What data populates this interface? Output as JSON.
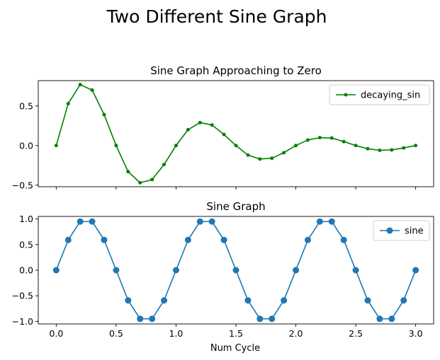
{
  "figure": {
    "suptitle": "Two Different Sine Graph",
    "xlabel": "Num Cycle"
  },
  "chart_data": [
    {
      "type": "line",
      "title": "Sine Graph Approaching to Zero",
      "xlabel": "",
      "ylabel": "",
      "xlim": [
        -0.15,
        3.15
      ],
      "ylim": [
        -0.52,
        0.82
      ],
      "xticks": [
        0.0,
        0.5,
        1.0,
        1.5,
        2.0,
        2.5,
        3.0
      ],
      "xtick_labels_visible": false,
      "yticks": [
        -0.5,
        0.0,
        0.5
      ],
      "ytick_labels": [
        "−0.5",
        "0.0",
        "0.5"
      ],
      "legend": "upper right",
      "grid": false,
      "series": [
        {
          "name": "decaying_sin",
          "color": "#008000",
          "marker": "small-dot",
          "x": [
            0.0,
            0.1,
            0.2,
            0.3,
            0.4,
            0.5,
            0.6,
            0.7,
            0.8,
            0.9,
            1.0,
            1.1,
            1.2,
            1.3,
            1.4,
            1.5,
            1.6,
            1.7,
            1.8,
            1.9,
            2.0,
            2.1,
            2.2,
            2.3,
            2.4,
            2.5,
            2.6,
            2.7,
            2.8,
            2.9,
            3.0
          ],
          "y": [
            0.0,
            0.53,
            0.77,
            0.7,
            0.39,
            0.0,
            -0.33,
            -0.47,
            -0.43,
            -0.24,
            0.0,
            0.2,
            0.29,
            0.26,
            0.14,
            0.0,
            -0.12,
            -0.17,
            -0.16,
            -0.09,
            0.0,
            0.07,
            0.1,
            0.095,
            0.05,
            0.0,
            -0.04,
            -0.06,
            -0.055,
            -0.03,
            0.0
          ]
        }
      ]
    },
    {
      "type": "line",
      "title": "Sine Graph",
      "xlabel": "Num Cycle",
      "ylabel": "",
      "xlim": [
        -0.15,
        3.15
      ],
      "ylim": [
        -1.05,
        1.05
      ],
      "xticks": [
        0.0,
        0.5,
        1.0,
        1.5,
        2.0,
        2.5,
        3.0
      ],
      "xtick_labels": [
        "0.0",
        "0.5",
        "1.0",
        "1.5",
        "2.0",
        "2.5",
        "3.0"
      ],
      "yticks": [
        -1.0,
        -0.5,
        0.0,
        0.5,
        1.0
      ],
      "ytick_labels": [
        "−1.0",
        "−0.5",
        "0.0",
        "0.5",
        "1.0"
      ],
      "legend": "upper right",
      "grid": false,
      "series": [
        {
          "name": "sine",
          "color": "#1f77b4",
          "marker": "large-dot",
          "x": [
            0.0,
            0.1,
            0.2,
            0.3,
            0.4,
            0.5,
            0.6,
            0.7,
            0.8,
            0.9,
            1.0,
            1.1,
            1.2,
            1.3,
            1.4,
            1.5,
            1.6,
            1.7,
            1.8,
            1.9,
            2.0,
            2.1,
            2.2,
            2.3,
            2.4,
            2.5,
            2.6,
            2.7,
            2.8,
            2.9,
            3.0
          ],
          "y": [
            0.0,
            0.59,
            0.95,
            0.95,
            0.59,
            0.0,
            -0.59,
            -0.95,
            -0.95,
            -0.59,
            0.0,
            0.59,
            0.95,
            0.95,
            0.59,
            0.0,
            -0.59,
            -0.95,
            -0.95,
            -0.59,
            0.0,
            0.59,
            0.95,
            0.95,
            0.59,
            0.0,
            -0.59,
            -0.95,
            -0.95,
            -0.59,
            0.0
          ]
        }
      ]
    }
  ]
}
